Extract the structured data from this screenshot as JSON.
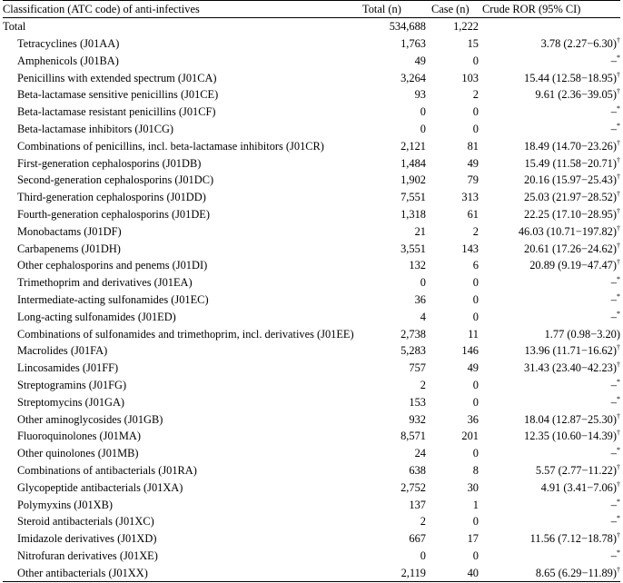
{
  "header": {
    "classification": "Classification (ATC code) of anti-infectives",
    "total": "Total (n)",
    "case": "Case (n)",
    "ror": "Crude ROR (95% CI)"
  },
  "rows": [
    {
      "name": "Total",
      "total": "534,688",
      "case": "1,222",
      "ror": "",
      "mark": "",
      "indent": false
    },
    {
      "name": "Tetracyclines (J01AA)",
      "total": "1,763",
      "case": "15",
      "ror": "3.78 (2.27−6.30)",
      "mark": "†",
      "indent": true
    },
    {
      "name": "Amphenicols (J01BA)",
      "total": "49",
      "case": "0",
      "ror": "–",
      "mark": "*",
      "indent": true
    },
    {
      "name": "Penicillins with extended spectrum (J01CA)",
      "total": "3,264",
      "case": "103",
      "ror": "15.44 (12.58−18.95)",
      "mark": "†",
      "indent": true
    },
    {
      "name": "Beta-lactamase sensitive penicillins (J01CE)",
      "total": "93",
      "case": "2",
      "ror": "9.61 (2.36−39.05)",
      "mark": "†",
      "indent": true
    },
    {
      "name": "Beta-lactamase resistant penicillins (J01CF)",
      "total": "0",
      "case": "0",
      "ror": "–",
      "mark": "*",
      "indent": true
    },
    {
      "name": "Beta-lactamase inhibitors (J01CG)",
      "total": "0",
      "case": "0",
      "ror": "–",
      "mark": "*",
      "indent": true
    },
    {
      "name": "Combinations of penicillins, incl. beta-lactamase inhibitors (J01CR)",
      "total": "2,121",
      "case": "81",
      "ror": "18.49 (14.70−23.26)",
      "mark": "†",
      "indent": true
    },
    {
      "name": "First-generation cephalosporins (J01DB)",
      "total": "1,484",
      "case": "49",
      "ror": "15.49 (11.58−20.71)",
      "mark": "†",
      "indent": true
    },
    {
      "name": "Second-generation cephalosporins (J01DC)",
      "total": "1,902",
      "case": "79",
      "ror": "20.16 (15.97−25.43)",
      "mark": "†",
      "indent": true
    },
    {
      "name": "Third-generation cephalosporins (J01DD)",
      "total": "7,551",
      "case": "313",
      "ror": "25.03 (21.97−28.52)",
      "mark": "†",
      "indent": true
    },
    {
      "name": "Fourth-generation cephalosporins (J01DE)",
      "total": "1,318",
      "case": "61",
      "ror": "22.25 (17.10−28.95)",
      "mark": "†",
      "indent": true
    },
    {
      "name": "Monobactams (J01DF)",
      "total": "21",
      "case": "2",
      "ror": "46.03 (10.71−197.82)",
      "mark": "†",
      "indent": true
    },
    {
      "name": "Carbapenems (J01DH)",
      "total": "3,551",
      "case": "143",
      "ror": "20.61 (17.26−24.62)",
      "mark": "†",
      "indent": true
    },
    {
      "name": "Other cephalosporins and penems (J01DI)",
      "total": "132",
      "case": "6",
      "ror": "20.89 (9.19−47.47)",
      "mark": "†",
      "indent": true
    },
    {
      "name": "Trimethoprim and derivatives (J01EA)",
      "total": "0",
      "case": "0",
      "ror": "–",
      "mark": "*",
      "indent": true
    },
    {
      "name": "Intermediate-acting sulfonamides (J01EC)",
      "total": "36",
      "case": "0",
      "ror": "–",
      "mark": "*",
      "indent": true
    },
    {
      "name": "Long-acting sulfonamides (J01ED)",
      "total": "4",
      "case": "0",
      "ror": "–",
      "mark": "*",
      "indent": true
    },
    {
      "name": "Combinations of sulfonamides and trimethoprim, incl. derivatives (J01EE)",
      "total": "2,738",
      "case": "11",
      "ror": "1.77 (0.98−3.20)",
      "mark": "",
      "indent": true
    },
    {
      "name": "Macrolides (J01FA)",
      "total": "5,283",
      "case": "146",
      "ror": "13.96 (11.71−16.62)",
      "mark": "†",
      "indent": true
    },
    {
      "name": "Lincosamides (J01FF)",
      "total": "757",
      "case": "49",
      "ror": "31.43 (23.40−42.23)",
      "mark": "†",
      "indent": true
    },
    {
      "name": "Streptogramins (J01FG)",
      "total": "2",
      "case": "0",
      "ror": "–",
      "mark": "*",
      "indent": true
    },
    {
      "name": "Streptomycins (J01GA)",
      "total": "153",
      "case": "0",
      "ror": "–",
      "mark": "*",
      "indent": true
    },
    {
      "name": "Other aminoglycosides (J01GB)",
      "total": "932",
      "case": "36",
      "ror": "18.04 (12.87−25.30)",
      "mark": "†",
      "indent": true
    },
    {
      "name": "Fluoroquinolones (J01MA)",
      "total": "8,571",
      "case": "201",
      "ror": "12.35 (10.60−14.39)",
      "mark": "†",
      "indent": true
    },
    {
      "name": "Other quinolones (J01MB)",
      "total": "24",
      "case": "0",
      "ror": "–",
      "mark": "*",
      "indent": true
    },
    {
      "name": "Combinations of antibacterials (J01RA)",
      "total": "638",
      "case": "8",
      "ror": "5.57 (2.77−11.22)",
      "mark": "†",
      "indent": true
    },
    {
      "name": "Glycopeptide antibacterials (J01XA)",
      "total": "2,752",
      "case": "30",
      "ror": "4.91 (3.41−7.06)",
      "mark": "†",
      "indent": true
    },
    {
      "name": "Polymyxins (J01XB)",
      "total": "137",
      "case": "1",
      "ror": "–",
      "mark": "*",
      "indent": true
    },
    {
      "name": "Steroid antibacterials (J01XC)",
      "total": "2",
      "case": "0",
      "ror": "–",
      "mark": "*",
      "indent": true
    },
    {
      "name": "Imidazole derivatives (J01XD)",
      "total": "667",
      "case": "17",
      "ror": "11.56 (7.12−18.78)",
      "mark": "†",
      "indent": true
    },
    {
      "name": "Nitrofuran derivatives (J01XE)",
      "total": "0",
      "case": "0",
      "ror": "–",
      "mark": "*",
      "indent": true
    },
    {
      "name": "Other antibacterials (J01XX)",
      "total": "2,119",
      "case": "40",
      "ror": "8.65 (6.29−11.89)",
      "mark": "†",
      "indent": true
    }
  ]
}
